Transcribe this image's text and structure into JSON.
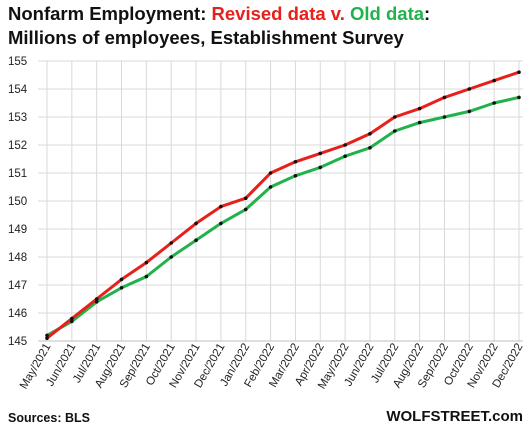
{
  "title": {
    "line1_prefix": "Nonfarm Employment: ",
    "line1_revised": "Revised data",
    "line1_sep": " v. ",
    "line1_old": "Old data",
    "line1_suffix": ":",
    "line2": "Millions of employees, Establishment Survey"
  },
  "footer": {
    "source": "Sources: BLS",
    "brand": "WOLFSTREET.com"
  },
  "colors": {
    "revised": "#e8201c",
    "old": "#22b24c",
    "marker": "#111111",
    "grid": "#d9d9d9"
  },
  "chart_data": {
    "type": "line",
    "categories": [
      "May/2021",
      "Jun/2021",
      "Jul/2021",
      "Aug/2021",
      "Sep/2021",
      "Oct/2021",
      "Nov/2021",
      "Dec/2021",
      "Jan/2022",
      "Feb/2022",
      "Mar/2022",
      "Apr/2022",
      "May/2022",
      "Jun/2022",
      "Jul/2022",
      "Aug/2022",
      "Sep/2022",
      "Oct/2022",
      "Nov/2022",
      "Dec/2022"
    ],
    "series": [
      {
        "name": "Revised data",
        "values": [
          145.1,
          145.8,
          146.5,
          147.2,
          147.8,
          148.5,
          149.2,
          149.8,
          150.1,
          151.0,
          151.4,
          151.7,
          152.0,
          152.4,
          153.0,
          153.3,
          153.7,
          154.0,
          154.3,
          154.6
        ]
      },
      {
        "name": "Old data",
        "values": [
          145.2,
          145.7,
          146.4,
          146.9,
          147.3,
          148.0,
          148.6,
          149.2,
          149.7,
          150.5,
          150.9,
          151.2,
          151.6,
          151.9,
          152.5,
          152.8,
          153.0,
          153.2,
          153.5,
          153.7
        ]
      }
    ],
    "ylim": [
      145,
      155
    ],
    "yticks": [
      145,
      146,
      147,
      148,
      149,
      150,
      151,
      152,
      153,
      154,
      155
    ],
    "grid": true,
    "legend": "none"
  }
}
